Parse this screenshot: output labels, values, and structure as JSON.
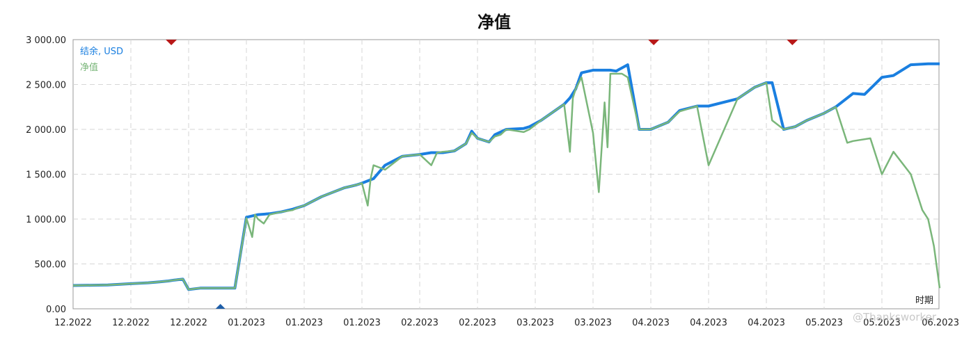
{
  "chart_data": {
    "type": "line",
    "title": "净值",
    "xlabel": "时期",
    "ylabel": "",
    "ylim": [
      0,
      3000
    ],
    "yticks": [
      "3 000.00",
      "2 500.00",
      "2 000.00",
      "1 500.00",
      "1 000.00",
      "500.00",
      "0.00"
    ],
    "ytick_values": [
      3000,
      2500,
      2000,
      1500,
      1000,
      500,
      0
    ],
    "xticks": [
      "12.2022",
      "12.2022",
      "12.2022",
      "01.2023",
      "01.2023",
      "01.2023",
      "02.2023",
      "02.2023",
      "03.2023",
      "03.2023",
      "04.2023",
      "04.2023",
      "04.2023",
      "05.2023",
      "05.2023",
      "06.2023"
    ],
    "grid": true,
    "legend_position": "top-left",
    "series": [
      {
        "name": "结余, USD",
        "color": "#1a7fe0",
        "x": [
          0,
          0.6,
          1.0,
          1.3,
          1.5,
          1.65,
          1.75,
          1.9,
          2.0,
          2.2,
          2.8,
          3.0,
          3.2,
          3.4,
          3.6,
          3.8,
          3.9,
          4.0,
          4.15,
          4.3,
          4.5,
          4.7,
          4.9,
          5.0,
          5.2,
          5.4,
          5.7,
          6.0,
          6.2,
          6.4,
          6.6,
          6.8,
          6.9,
          7.0,
          7.2,
          7.3,
          7.5,
          7.8,
          7.9,
          8.1,
          8.5,
          8.6,
          8.7,
          8.8,
          9.0,
          9.3,
          9.4,
          9.6,
          9.8,
          10.0,
          10.3,
          10.5,
          10.8,
          11.0,
          11.5,
          11.8,
          12.0,
          12.1,
          12.3,
          12.5,
          12.7,
          13.0,
          13.2,
          13.5,
          13.7,
          14.0,
          14.2,
          14.5,
          14.8,
          15.0
        ],
        "y": [
          260,
          265,
          280,
          290,
          300,
          310,
          320,
          330,
          215,
          230,
          230,
          1020,
          1050,
          1060,
          1080,
          1110,
          1130,
          1150,
          1200,
          1250,
          1300,
          1350,
          1380,
          1400,
          1450,
          1600,
          1700,
          1720,
          1740,
          1740,
          1760,
          1840,
          1980,
          1900,
          1860,
          1940,
          2000,
          2010,
          2030,
          2100,
          2280,
          2350,
          2450,
          2630,
          2660,
          2660,
          2650,
          2720,
          2000,
          2000,
          2080,
          2210,
          2260,
          2260,
          2340,
          2470,
          2520,
          2520,
          2000,
          2030,
          2100,
          2180,
          2250,
          2400,
          2390,
          2580,
          2600,
          2720,
          2730,
          2730
        ]
      },
      {
        "name": "净值",
        "color": "#7ab67a",
        "x": [
          0,
          0.6,
          1.0,
          1.3,
          1.5,
          1.65,
          1.75,
          1.9,
          2.0,
          2.2,
          2.8,
          3.0,
          3.1,
          3.15,
          3.2,
          3.3,
          3.4,
          3.6,
          3.8,
          3.9,
          4.0,
          4.15,
          4.3,
          4.5,
          4.7,
          4.9,
          5.0,
          5.1,
          5.15,
          5.2,
          5.4,
          5.6,
          5.7,
          6.0,
          6.2,
          6.3,
          6.4,
          6.6,
          6.8,
          6.9,
          7.0,
          7.2,
          7.3,
          7.4,
          7.5,
          7.8,
          7.9,
          8.1,
          8.5,
          8.6,
          8.65,
          8.7,
          8.8,
          9.0,
          9.1,
          9.2,
          9.25,
          9.3,
          9.5,
          9.6,
          9.8,
          10.0,
          10.3,
          10.5,
          10.8,
          11.0,
          11.5,
          11.8,
          12.0,
          12.1,
          12.3,
          12.5,
          12.7,
          13.0,
          13.2,
          13.4,
          13.5,
          13.8,
          14.0,
          14.2,
          14.5,
          14.7,
          14.8,
          14.9,
          15.0
        ],
        "y": [
          260,
          265,
          280,
          290,
          300,
          310,
          320,
          330,
          215,
          230,
          230,
          1010,
          800,
          1050,
          1000,
          950,
          1050,
          1080,
          1100,
          1130,
          1150,
          1200,
          1250,
          1300,
          1350,
          1380,
          1400,
          1150,
          1450,
          1600,
          1550,
          1650,
          1700,
          1720,
          1600,
          1740,
          1750,
          1760,
          1840,
          1960,
          1900,
          1860,
          1920,
          1940,
          2000,
          1970,
          2000,
          2100,
          2280,
          1750,
          2350,
          2450,
          2580,
          1960,
          1300,
          2300,
          1800,
          2620,
          2620,
          2580,
          2000,
          2000,
          2080,
          2200,
          2260,
          1600,
          2340,
          2470,
          2520,
          2100,
          2000,
          2030,
          2100,
          2180,
          2250,
          1850,
          1870,
          1900,
          1500,
          1750,
          1500,
          1100,
          1000,
          700,
          230
        ]
      }
    ],
    "markers": [
      {
        "kind": "sell",
        "x": 1.7,
        "color": "#b81818"
      },
      {
        "kind": "sell",
        "x": 10.05,
        "color": "#b81818"
      },
      {
        "kind": "sell",
        "x": 12.45,
        "color": "#b81818"
      },
      {
        "kind": "buy",
        "x": 2.55,
        "color": "#1e5ea8"
      }
    ]
  },
  "watermark": "@Thanksworker"
}
